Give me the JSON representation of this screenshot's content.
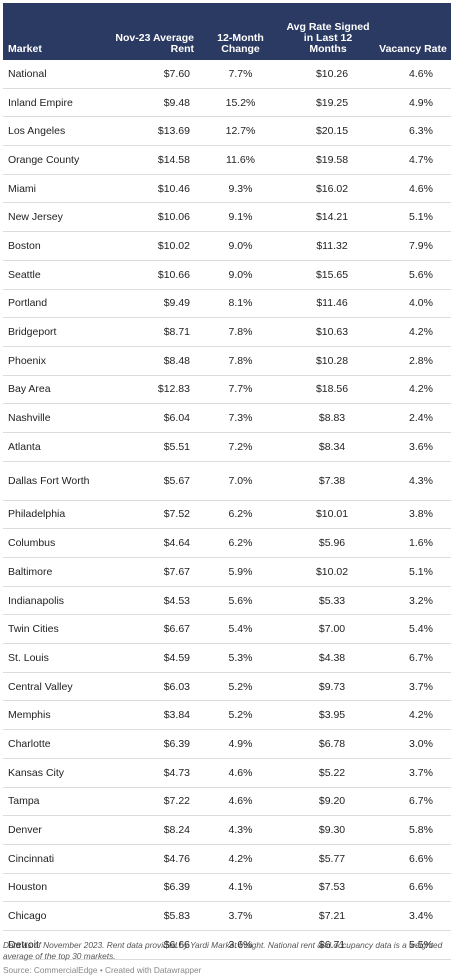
{
  "chart_data": {
    "type": "table",
    "columns": [
      "Market",
      "Nov-23 Average Rent",
      "12-Month Change",
      "Avg Rate Signed in Last 12 Months",
      "Vacancy Rate"
    ],
    "rows": [
      [
        "National",
        "$7.60",
        "7.7%",
        "$10.26",
        "4.6%"
      ],
      [
        "Inland Empire",
        "$9.48",
        "15.2%",
        "$19.25",
        "4.9%"
      ],
      [
        "Los Angeles",
        "$13.69",
        "12.7%",
        "$20.15",
        "6.3%"
      ],
      [
        "Orange County",
        "$14.58",
        "11.6%",
        "$19.58",
        "4.7%"
      ],
      [
        "Miami",
        "$10.46",
        "9.3%",
        "$16.02",
        "4.6%"
      ],
      [
        "New Jersey",
        "$10.06",
        "9.1%",
        "$14.21",
        "5.1%"
      ],
      [
        "Boston",
        "$10.02",
        "9.0%",
        "$11.32",
        "7.9%"
      ],
      [
        "Seattle",
        "$10.66",
        "9.0%",
        "$15.65",
        "5.6%"
      ],
      [
        "Portland",
        "$9.49",
        "8.1%",
        "$11.46",
        "4.0%"
      ],
      [
        "Bridgeport",
        "$8.71",
        "7.8%",
        "$10.63",
        "4.2%"
      ],
      [
        "Phoenix",
        "$8.48",
        "7.8%",
        "$10.28",
        "2.8%"
      ],
      [
        "Bay Area",
        "$12.83",
        "7.7%",
        "$18.56",
        "4.2%"
      ],
      [
        "Nashville",
        "$6.04",
        "7.3%",
        "$8.83",
        "2.4%"
      ],
      [
        "Atlanta",
        "$5.51",
        "7.2%",
        "$8.34",
        "3.6%"
      ],
      [
        "Dallas Fort Worth",
        "$5.67",
        "7.0%",
        "$7.38",
        "4.3%"
      ],
      [
        "Philadelphia",
        "$7.52",
        "6.2%",
        "$10.01",
        "3.8%"
      ],
      [
        "Columbus",
        "$4.64",
        "6.2%",
        "$5.96",
        "1.6%"
      ],
      [
        "Baltimore",
        "$7.67",
        "5.9%",
        "$10.02",
        "5.1%"
      ],
      [
        "Indianapolis",
        "$4.53",
        "5.6%",
        "$5.33",
        "3.2%"
      ],
      [
        "Twin Cities",
        "$6.67",
        "5.4%",
        "$7.00",
        "5.4%"
      ],
      [
        "St. Louis",
        "$4.59",
        "5.3%",
        "$4.38",
        "6.7%"
      ],
      [
        "Central Valley",
        "$6.03",
        "5.2%",
        "$9.73",
        "3.7%"
      ],
      [
        "Memphis",
        "$3.84",
        "5.2%",
        "$3.95",
        "4.2%"
      ],
      [
        "Charlotte",
        "$6.39",
        "4.9%",
        "$6.78",
        "3.0%"
      ],
      [
        "Kansas City",
        "$4.73",
        "4.6%",
        "$5.22",
        "3.7%"
      ],
      [
        "Tampa",
        "$7.22",
        "4.6%",
        "$9.20",
        "6.7%"
      ],
      [
        "Denver",
        "$8.24",
        "4.3%",
        "$9.30",
        "5.8%"
      ],
      [
        "Cincinnati",
        "$4.76",
        "4.2%",
        "$5.77",
        "6.6%"
      ],
      [
        "Houston",
        "$6.39",
        "4.1%",
        "$7.53",
        "6.6%"
      ],
      [
        "Chicago",
        "$5.83",
        "3.7%",
        "$7.21",
        "3.4%"
      ],
      [
        "Detroit",
        "$6.66",
        "3.6%",
        "$6.71",
        "5.5%"
      ]
    ],
    "header_color": "#2b3a63"
  },
  "notes": "Data as of November 2023. Rent data provided by Yardi Market Insight. National rent and occupancy data is a weighted average of the top 30 markets.",
  "source": "Source: CommercialEdge • Created with Datawrapper"
}
